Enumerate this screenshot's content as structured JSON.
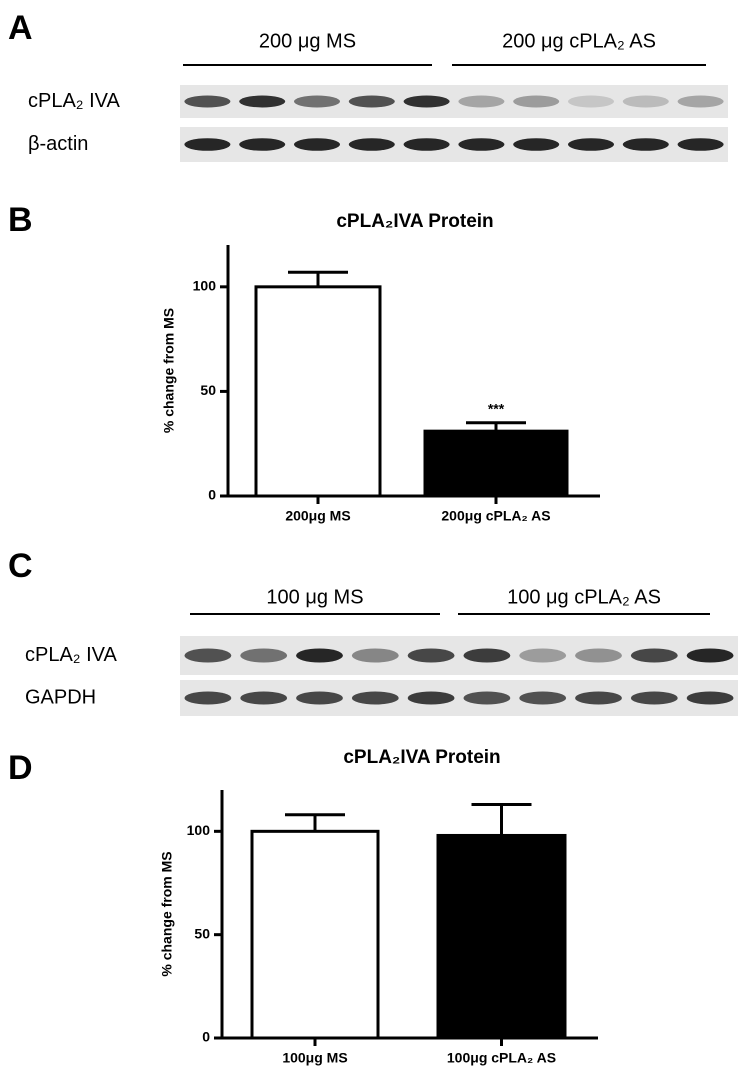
{
  "panel_labels": [
    "A",
    "B",
    "C",
    "D"
  ],
  "blots": [
    {
      "groups": [
        "200 μg MS",
        "200 μg cPLA₂ AS"
      ],
      "rows": [
        "cPLA₂ IVA",
        "β-actin"
      ]
    },
    {
      "groups": [
        "100 μg MS",
        "100 μg cPLA₂ AS"
      ],
      "rows": [
        "cPLA₂ IVA",
        "GAPDH"
      ]
    }
  ],
  "chart_data": [
    {
      "type": "bar",
      "title": "cPLA₂IVA Protein",
      "y_label": "% change from MS",
      "categories": [
        "200μg MS",
        "200μg cPLA₂ AS"
      ],
      "values": [
        100,
        31
      ],
      "errors": [
        7,
        4
      ],
      "colors": [
        "#ffffff",
        "#000000"
      ],
      "annotation": "***",
      "ylim": [
        0,
        120
      ],
      "yticks": [
        0,
        50,
        100
      ]
    },
    {
      "type": "bar",
      "title": "cPLA₂IVA Protein",
      "y_label": "% change from MS",
      "categories": [
        "100μg MS",
        "100μg cPLA₂ AS"
      ],
      "values": [
        100,
        98
      ],
      "errors": [
        8,
        15
      ],
      "colors": [
        "#ffffff",
        "#000000"
      ],
      "ylim": [
        0,
        120
      ],
      "yticks": [
        0,
        50,
        100
      ]
    }
  ]
}
